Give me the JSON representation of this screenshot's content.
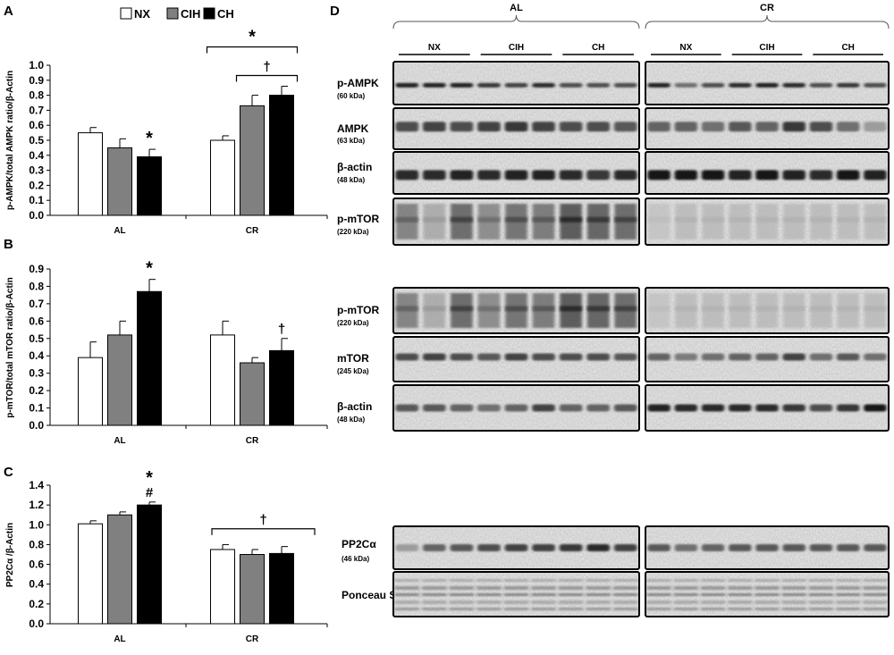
{
  "legend": [
    "NX",
    "CIH",
    "CH"
  ],
  "colors": {
    "NX": "#ffffff",
    "CIH": "#808080",
    "CH": "#000000"
  },
  "chart_data": [
    {
      "type": "bar",
      "panel": "A",
      "ylabel": "p-AMPK/total AMPK ratio/β-Actin",
      "ylim": [
        0,
        1.0
      ],
      "ytick_step": 0.1,
      "ytick_decimals": 1,
      "categories": [
        "AL",
        "CR"
      ],
      "series": [
        {
          "name": "NX",
          "values": [
            0.55,
            0.5
          ],
          "errors": [
            0.035,
            0.03
          ]
        },
        {
          "name": "CIH",
          "values": [
            0.45,
            0.73
          ],
          "errors": [
            0.06,
            0.07
          ]
        },
        {
          "name": "CH",
          "values": [
            0.39,
            0.8
          ],
          "errors": [
            0.05,
            0.06
          ]
        }
      ],
      "bar_marks": [
        {
          "category": 0,
          "series": 2,
          "text": "*"
        }
      ],
      "brackets": [
        {
          "category": 1,
          "from": 0,
          "to": 2,
          "text": "*"
        },
        {
          "category": 1,
          "from": 1,
          "to": 2,
          "text": "†"
        }
      ]
    },
    {
      "type": "bar",
      "panel": "B",
      "ylabel": "p-mTOR/total mTOR ratio/β-Actin",
      "ylim": [
        0,
        0.9
      ],
      "ytick_step": 0.1,
      "ytick_decimals": 1,
      "categories": [
        "AL",
        "CR"
      ],
      "series": [
        {
          "name": "NX",
          "values": [
            0.39,
            0.52
          ],
          "errors": [
            0.09,
            0.08
          ]
        },
        {
          "name": "CIH",
          "values": [
            0.52,
            0.36
          ],
          "errors": [
            0.08,
            0.03
          ]
        },
        {
          "name": "CH",
          "values": [
            0.77,
            0.43
          ],
          "errors": [
            0.07,
            0.07
          ]
        }
      ],
      "bar_marks": [
        {
          "category": 0,
          "series": 2,
          "text": "*"
        },
        {
          "category": 1,
          "series": 2,
          "text": "†"
        }
      ],
      "brackets": []
    },
    {
      "type": "bar",
      "panel": "C",
      "ylabel": "PP2Cα /β-Actin",
      "ylim": [
        0,
        1.4
      ],
      "ytick_step": 0.2,
      "ytick_decimals": 1,
      "categories": [
        "AL",
        "CR"
      ],
      "series": [
        {
          "name": "NX",
          "values": [
            1.01,
            0.75
          ],
          "errors": [
            0.03,
            0.05
          ]
        },
        {
          "name": "CIH",
          "values": [
            1.1,
            0.7
          ],
          "errors": [
            0.03,
            0.05
          ]
        },
        {
          "name": "CH",
          "values": [
            1.2,
            0.71
          ],
          "errors": [
            0.03,
            0.07
          ]
        }
      ],
      "bar_marks": [
        {
          "category": 0,
          "series": 2,
          "text": "*\n#"
        }
      ],
      "brackets": [
        {
          "category": 1,
          "from": 0,
          "to": 2,
          "text": "†"
        }
      ]
    }
  ],
  "blots": {
    "panel": "D",
    "groups": [
      "AL",
      "CR"
    ],
    "subgroups": [
      "NX",
      "CIH",
      "CH"
    ],
    "rows": [
      {
        "name": "p-AMPK",
        "kda": "(60 kDa)"
      },
      {
        "name": "AMPK",
        "kda": "(63 kDa)"
      },
      {
        "name": "β-actin",
        "kda": "(48 kDa)"
      },
      {
        "name": "p-mTOR",
        "kda": "(220 kDa)"
      },
      {
        "name": "p-mTOR",
        "kda": "(220 kDa)"
      },
      {
        "name": "mTOR",
        "kda": "(245 kDa)"
      },
      {
        "name": "β-actin",
        "kda": "(48 kDa)"
      },
      {
        "name": "PP2Cα",
        "kda": "(46 kDa)"
      },
      {
        "name": "Ponceau S",
        "kda": ""
      }
    ]
  }
}
